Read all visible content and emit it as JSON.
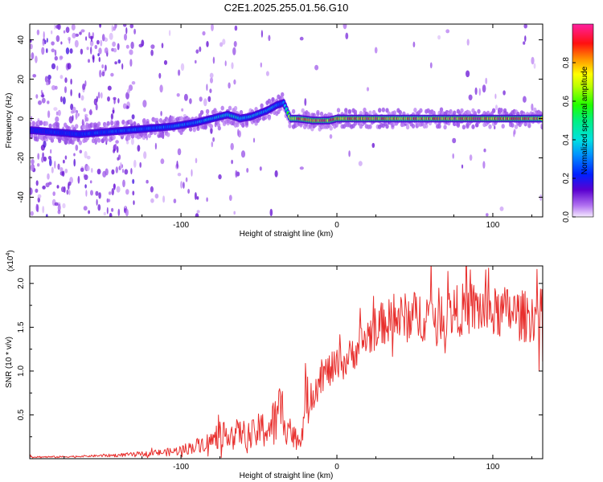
{
  "title": "C2E1.2025.255.01.56.G10",
  "chart_data": [
    {
      "type": "heatmap",
      "title": "C2E1.2025.255.01.56.G10",
      "xlabel": "Height of straight line (km)",
      "ylabel": "Frequency (Hz)",
      "xlim": [
        -197,
        132
      ],
      "ylim": [
        -50,
        48
      ],
      "xticks": [
        -100,
        0,
        100
      ],
      "yticks": [
        -40,
        -20,
        0,
        20,
        40
      ],
      "xtick_labels": [
        "-100",
        "0",
        "100"
      ],
      "ytick_labels": [
        "-40",
        "-20",
        "0",
        "20",
        "40"
      ],
      "colorbar": {
        "label": "Normalized spectral amplitude",
        "range": [
          0,
          1
        ],
        "ticks": [
          0.0,
          0.2,
          0.4,
          0.6,
          0.8
        ],
        "tick_labels": [
          "0.0",
          "0.2",
          "0.4",
          "0.6",
          "0.8"
        ]
      },
      "ridge": {
        "x": [
          -195,
          -180,
          -165,
          -150,
          -135,
          -120,
          -105,
          -90,
          -80,
          -70,
          -62,
          -55,
          -45,
          -38,
          -34,
          -30,
          -25,
          -15,
          -5,
          0,
          20,
          50,
          80,
          110,
          130
        ],
        "y": [
          -6,
          -7,
          -8,
          -7,
          -6,
          -5,
          -4,
          -2,
          0,
          2,
          0,
          1,
          4,
          7,
          8,
          0,
          0,
          -1,
          -1,
          0,
          0,
          0,
          0,
          0,
          0
        ],
        "amplitude": [
          0.2,
          0.25,
          0.25,
          0.3,
          0.3,
          0.3,
          0.35,
          0.35,
          0.4,
          0.45,
          0.45,
          0.4,
          0.4,
          0.35,
          0.3,
          0.85,
          0.9,
          0.95,
          0.9,
          0.95,
          0.95,
          0.9,
          0.95,
          0.95,
          0.9
        ]
      }
    },
    {
      "type": "line",
      "xlabel": "Height of straight line (km)",
      "ylabel": "SNR (10 * v/v)",
      "y_multiplier": "(x10",
      "y_multiplier_exp": "4",
      "y_multiplier_close": ")",
      "xlim": [
        -197,
        132
      ],
      "ylim": [
        0,
        2.2
      ],
      "xticks": [
        -100,
        0,
        100
      ],
      "yticks": [
        0.5,
        1.0,
        1.5,
        2.0
      ],
      "xtick_labels": [
        "-100",
        "0",
        "100"
      ],
      "ytick_labels": [
        "0.5",
        "1.0",
        "1.5",
        "2.0"
      ],
      "color": "#e8302e",
      "series": [
        {
          "name": "SNR",
          "x": [
            -197,
            -180,
            -160,
            -140,
            -120,
            -105,
            -95,
            -85,
            -78,
            -70,
            -62,
            -55,
            -50,
            -44,
            -40,
            -36,
            -32,
            -28,
            -24,
            -20,
            -15,
            -10,
            -5,
            0,
            5,
            10,
            15,
            20,
            25,
            30,
            40,
            50,
            60,
            70,
            80,
            90,
            100,
            110,
            120,
            132
          ],
          "y": [
            0.02,
            0.02,
            0.03,
            0.04,
            0.06,
            0.08,
            0.12,
            0.18,
            0.22,
            0.3,
            0.3,
            0.25,
            0.32,
            0.35,
            0.4,
            0.55,
            0.45,
            0.25,
            0.2,
            0.6,
            0.8,
            0.95,
            1.0,
            1.05,
            1.1,
            1.2,
            1.3,
            1.4,
            1.5,
            1.55,
            1.6,
            1.62,
            1.65,
            1.65,
            1.7,
            1.72,
            1.65,
            1.68,
            1.62,
            1.65
          ],
          "noise": [
            0.01,
            0.01,
            0.01,
            0.02,
            0.03,
            0.05,
            0.07,
            0.1,
            0.12,
            0.15,
            0.15,
            0.18,
            0.2,
            0.25,
            0.3,
            0.35,
            0.3,
            0.15,
            0.1,
            0.3,
            0.25,
            0.2,
            0.2,
            0.2,
            0.2,
            0.2,
            0.22,
            0.25,
            0.25,
            0.25,
            0.28,
            0.3,
            0.3,
            0.3,
            0.3,
            0.32,
            0.3,
            0.3,
            0.3,
            0.3
          ]
        }
      ]
    }
  ]
}
